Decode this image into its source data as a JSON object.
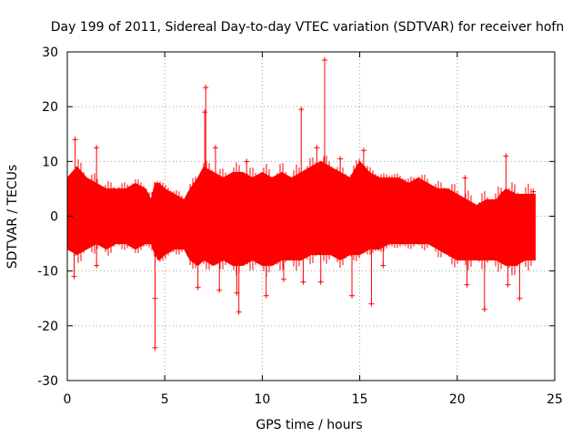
{
  "chart_data": {
    "type": "scatter",
    "title": "Day 199 of 2011, Sidereal Day-to-day VTEC variation (SDTVAR) for receiver hofn",
    "xlabel": "GPS time / hours",
    "ylabel": "SDTVAR / TECUs",
    "xlim": [
      0,
      25
    ],
    "ylim": [
      -30,
      30
    ],
    "xticks": [
      0,
      5,
      10,
      15,
      20,
      25
    ],
    "yticks": [
      -30,
      -20,
      -10,
      0,
      10,
      20,
      30
    ],
    "grid": true,
    "marker": "+",
    "color": "#ff0000",
    "series": [
      {
        "name": "SDTVAR",
        "envelope": {
          "x": [
            0.0,
            0.5,
            1.0,
            1.5,
            2.0,
            2.5,
            3.0,
            3.5,
            4.0,
            4.3,
            4.5,
            4.7,
            5.0,
            5.5,
            6.0,
            6.3,
            6.7,
            7.0,
            7.5,
            8.0,
            8.5,
            9.0,
            9.5,
            10.0,
            10.5,
            11.0,
            11.5,
            12.0,
            12.5,
            13.0,
            13.5,
            14.0,
            14.5,
            15.0,
            15.5,
            16.0,
            16.5,
            17.0,
            17.5,
            18.0,
            18.5,
            19.0,
            19.5,
            20.0,
            20.5,
            21.0,
            21.5,
            22.0,
            22.5,
            23.0,
            23.5,
            24.0
          ],
          "upper": [
            7,
            9,
            7,
            6,
            5,
            5,
            5,
            6,
            5,
            3,
            6,
            6,
            5,
            4,
            3,
            5,
            7,
            9,
            8,
            7,
            8,
            8,
            7,
            8,
            7,
            8,
            7,
            8,
            9,
            10,
            9,
            8,
            7,
            10,
            8,
            7,
            7,
            7,
            6,
            7,
            6,
            5,
            5,
            4,
            3,
            2,
            3,
            3,
            5,
            4,
            4,
            4
          ],
          "lower": [
            -6,
            -7,
            -6,
            -5,
            -6,
            -5,
            -5,
            -6,
            -5,
            -5,
            -7,
            -8,
            -7,
            -6,
            -6,
            -8,
            -9,
            -8,
            -9,
            -8,
            -9,
            -9,
            -8,
            -9,
            -9,
            -8,
            -8,
            -8,
            -7,
            -7,
            -7,
            -8,
            -7,
            -7,
            -6,
            -6,
            -5,
            -5,
            -5,
            -5,
            -5,
            -6,
            -7,
            -8,
            -8,
            -8,
            -8,
            -8,
            -9,
            -9,
            -8,
            -8
          ]
        },
        "spikes": [
          {
            "x": 0.4,
            "y": 14
          },
          {
            "x": 0.35,
            "y": -11
          },
          {
            "x": 1.5,
            "y": 12.5
          },
          {
            "x": 1.5,
            "y": -9
          },
          {
            "x": 4.5,
            "y": -24
          },
          {
            "x": 4.5,
            "y": -15
          },
          {
            "x": 6.7,
            "y": -13
          },
          {
            "x": 7.1,
            "y": 23.5
          },
          {
            "x": 7.05,
            "y": 19
          },
          {
            "x": 7.6,
            "y": 12.5
          },
          {
            "x": 7.8,
            "y": -13.5
          },
          {
            "x": 8.8,
            "y": -17.5
          },
          {
            "x": 8.7,
            "y": -14
          },
          {
            "x": 9.2,
            "y": 10
          },
          {
            "x": 10.2,
            "y": -14.5
          },
          {
            "x": 11.1,
            "y": -11.5
          },
          {
            "x": 12.0,
            "y": 19.5
          },
          {
            "x": 12.1,
            "y": -12
          },
          {
            "x": 12.8,
            "y": 12.5
          },
          {
            "x": 13.2,
            "y": 28.5
          },
          {
            "x": 13.0,
            "y": -12
          },
          {
            "x": 14.0,
            "y": 10.5
          },
          {
            "x": 14.6,
            "y": -14.5
          },
          {
            "x": 15.2,
            "y": 12
          },
          {
            "x": 15.6,
            "y": -16
          },
          {
            "x": 16.2,
            "y": -9
          },
          {
            "x": 20.4,
            "y": 7
          },
          {
            "x": 20.5,
            "y": -12.5
          },
          {
            "x": 21.4,
            "y": -17
          },
          {
            "x": 22.3,
            "y": 4
          },
          {
            "x": 22.5,
            "y": 11
          },
          {
            "x": 22.6,
            "y": -12.5
          },
          {
            "x": 23.2,
            "y": -15
          },
          {
            "x": 22.9,
            "y": 4
          },
          {
            "x": 23.9,
            "y": 4.5
          }
        ]
      }
    ]
  }
}
